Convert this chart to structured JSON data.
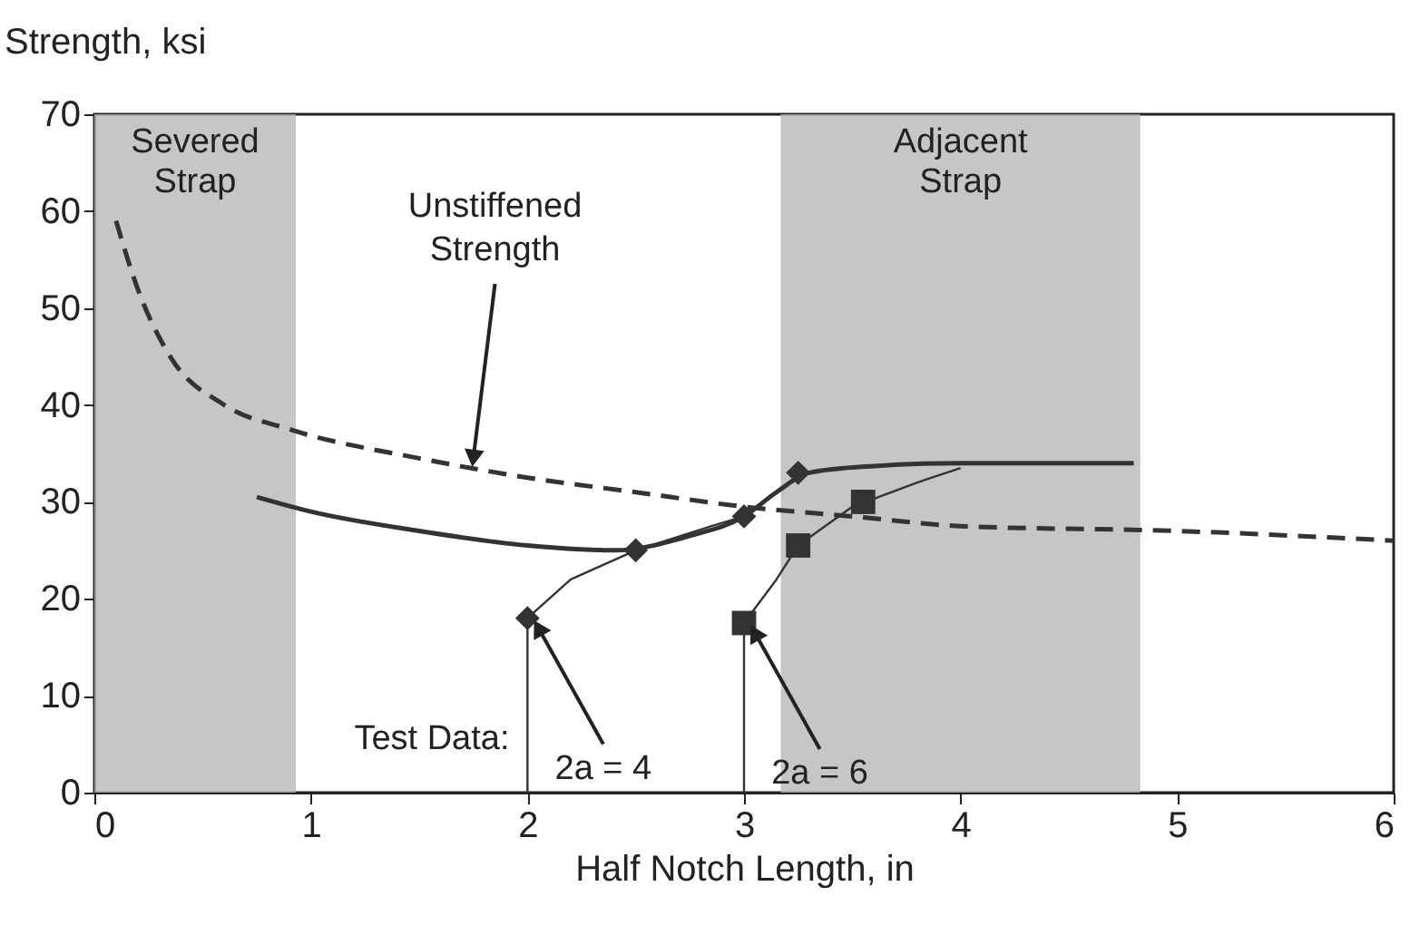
{
  "chart_data": {
    "type": "line",
    "xlabel": "Half Notch Length, in",
    "ylabel": "Strength, ksi",
    "xlim": [
      0,
      6
    ],
    "xticks": [
      0,
      1,
      2,
      3,
      4,
      5,
      6
    ],
    "ylim": [
      0,
      70
    ],
    "yticks": [
      0,
      10,
      20,
      30,
      40,
      50,
      60,
      70
    ],
    "bands": [
      {
        "axis": "x",
        "from": 0,
        "to": 0.93,
        "label": "Severed\nStrap",
        "color": "#b8b8b8"
      },
      {
        "axis": "x",
        "from": 3.17,
        "to": 4.83,
        "label": "Adjacent\nStrap",
        "color": "#b8b8b8"
      }
    ],
    "series": [
      {
        "color": "#333333",
        "line_style": "dashed",
        "marker": "none",
        "x": [
          0.1,
          0.2,
          0.35,
          0.6,
          0.9,
          1.5,
          2,
          2.5,
          3,
          3.5,
          4,
          5,
          6
        ],
        "values": [
          59,
          52,
          45,
          40,
          37.5,
          34.5,
          32.5,
          31,
          29.5,
          28.5,
          27.5,
          27,
          26
        ]
      },
      {
        "color": "#333333",
        "line_style": "solid",
        "marker": "none",
        "x": [
          0.75,
          1,
          1.5,
          2,
          2.4,
          2.75,
          3,
          3.15,
          3.3,
          3.6,
          4,
          4.5,
          4.8
        ],
        "values": [
          30.5,
          29,
          27,
          25.5,
          25,
          26.5,
          28.5,
          31,
          33,
          33.7,
          34,
          34,
          34
        ]
      },
      {
        "color": "#333333",
        "line_style": "solid",
        "marker": "none",
        "x": [
          2,
          2,
          2.2,
          2.5,
          2.85,
          3
        ],
        "values": [
          0,
          18,
          22,
          25,
          27.5,
          28.5
        ]
      },
      {
        "color": "#333333",
        "line_style": "solid",
        "marker": "none",
        "x": [
          3,
          3,
          3.15,
          3.25,
          3.5,
          3.8,
          4
        ],
        "values": [
          0,
          17.5,
          22,
          25.5,
          29.5,
          32,
          33.5
        ]
      },
      {
        "type": "scatter",
        "color": "#333333",
        "marker": "diamond",
        "x": [
          2,
          2.5,
          3,
          3.25
        ],
        "values": [
          18,
          25,
          28.5,
          33
        ]
      },
      {
        "type": "scatter",
        "color": "#333333",
        "marker": "square",
        "x": [
          3,
          3.25,
          3.55
        ],
        "values": [
          17.5,
          25.5,
          30
        ]
      }
    ],
    "annotations": [
      {
        "text": "Unstiffened\nStrength",
        "x": 1.75,
        "y": 34.5
      },
      {
        "text": "2a = 4",
        "x": 2.05,
        "y": 17
      },
      {
        "text": "2a = 6",
        "x": 3.05,
        "y": 16.5
      },
      "Test Data:"
    ]
  }
}
